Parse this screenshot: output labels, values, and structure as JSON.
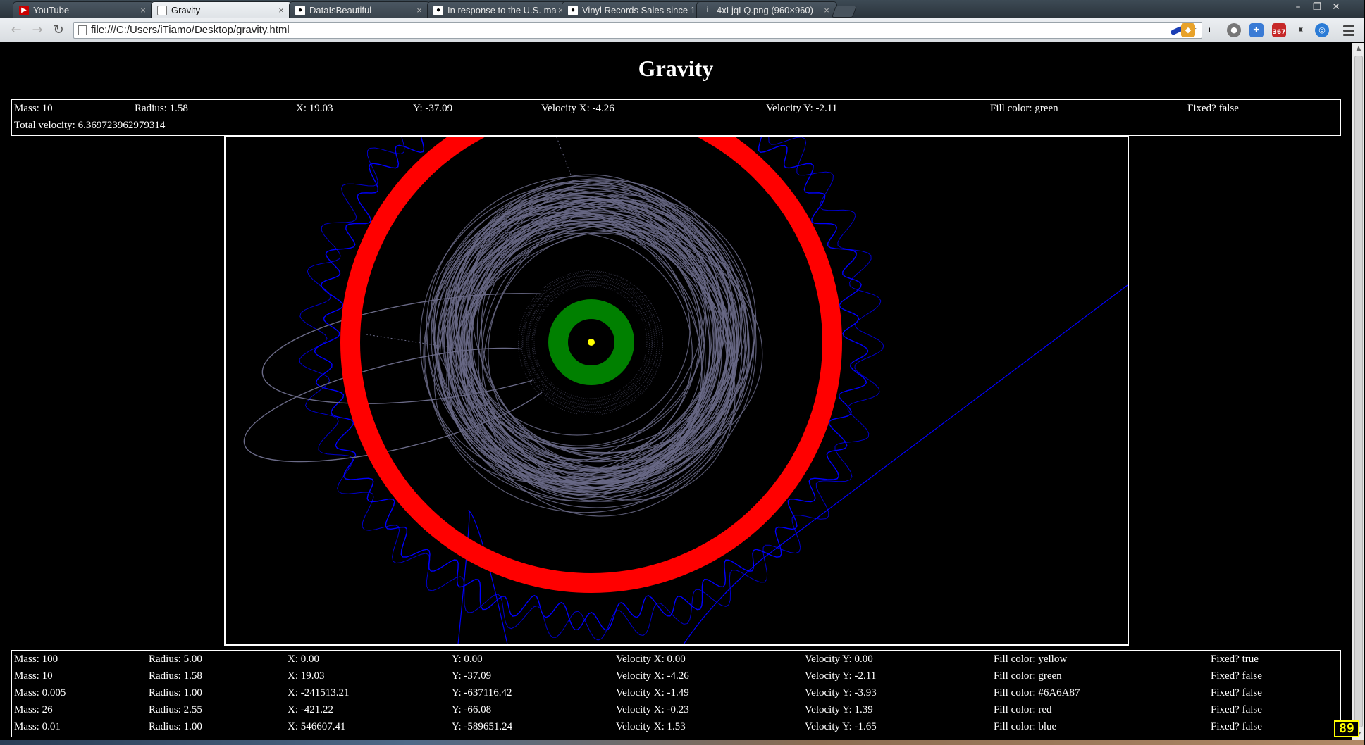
{
  "browser": {
    "tabs": [
      {
        "title": "YouTube",
        "icon": "youtube-icon"
      },
      {
        "title": "Gravity",
        "icon": "document-icon",
        "active": true
      },
      {
        "title": "DataIsBeautiful",
        "icon": "reddit-icon"
      },
      {
        "title": "In response to the U.S. ma",
        "icon": "reddit-icon"
      },
      {
        "title": "Vinyl Records Sales since 1",
        "icon": "reddit-icon"
      },
      {
        "title": "4xLjqLQ.png (960×960)",
        "icon": "image-icon"
      }
    ],
    "address": "file:///C:/Users/iTiamo/Desktop/gravity.html",
    "extension_badge": "367"
  },
  "page": {
    "title": "Gravity",
    "selected": {
      "mass": "Mass: 10",
      "radius": "Radius: 1.58",
      "x": "X: 19.03",
      "y": "Y: -37.09",
      "vx": "Velocity X: -4.26",
      "vy": "Velocity Y: -2.11",
      "fill": "Fill color: green",
      "fixed": "Fixed? false",
      "total_velocity": "Total velocity: 6.369723962979314"
    },
    "bodies": [
      {
        "mass": "Mass: 100",
        "radius": "Radius: 5.00",
        "x": "X: 0.00",
        "y": "Y: 0.00",
        "vx": "Velocity X: 0.00",
        "vy": "Velocity Y: 0.00",
        "fill": "Fill color: yellow",
        "fixed": "Fixed? true"
      },
      {
        "mass": "Mass: 10",
        "radius": "Radius: 1.58",
        "x": "X: 19.03",
        "y": "Y: -37.09",
        "vx": "Velocity X: -4.26",
        "vy": "Velocity Y: -2.11",
        "fill": "Fill color: green",
        "fixed": "Fixed? false"
      },
      {
        "mass": "Mass: 0.005",
        "radius": "Radius: 1.00",
        "x": "X: -241513.21",
        "y": "Y: -637116.42",
        "vx": "Velocity X: -1.49",
        "vy": "Velocity Y: -3.93",
        "fill": "Fill color: #6A6A87",
        "fixed": "Fixed? false"
      },
      {
        "mass": "Mass: 26",
        "radius": "Radius: 2.55",
        "x": "X: -421.22",
        "y": "Y: -66.08",
        "vx": "Velocity X: -0.23",
        "vy": "Velocity Y: 1.39",
        "fill": "Fill color: red",
        "fixed": "Fixed? false"
      },
      {
        "mass": "Mass: 0.01",
        "radius": "Radius: 1.00",
        "x": "X: 546607.41",
        "y": "Y: -589651.24",
        "vx": "Velocity X: 1.53",
        "vy": "Velocity Y: -1.65",
        "fill": "Fill color: blue",
        "fixed": "Fixed? false"
      }
    ],
    "fps": "89"
  },
  "colors": {
    "sun": "#ffff00",
    "green_ring": "#008000",
    "red_ring": "#ff0000",
    "gray_orbits": "#6a6a87",
    "blue_trail": "#0000ff"
  }
}
